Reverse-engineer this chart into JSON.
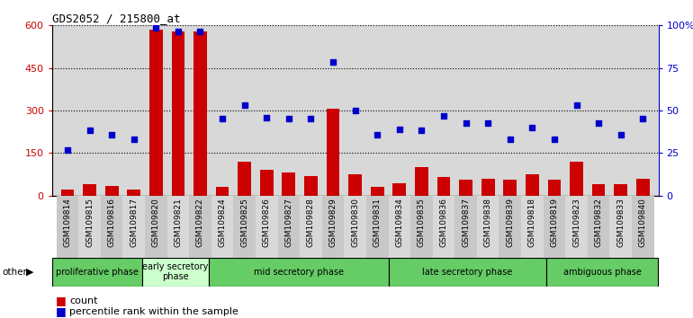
{
  "title": "GDS2052 / 215800_at",
  "samples": [
    "GSM109814",
    "GSM109815",
    "GSM109816",
    "GSM109817",
    "GSM109820",
    "GSM109821",
    "GSM109822",
    "GSM109824",
    "GSM109825",
    "GSM109826",
    "GSM109827",
    "GSM109828",
    "GSM109829",
    "GSM109830",
    "GSM109831",
    "GSM109834",
    "GSM109835",
    "GSM109836",
    "GSM109837",
    "GSM109838",
    "GSM109839",
    "GSM109818",
    "GSM109819",
    "GSM109823",
    "GSM109832",
    "GSM109833",
    "GSM109840"
  ],
  "counts": [
    22,
    40,
    35,
    22,
    585,
    580,
    580,
    30,
    120,
    90,
    80,
    70,
    305,
    75,
    30,
    45,
    100,
    65,
    55,
    60,
    55,
    75,
    55,
    120,
    40,
    40,
    60
  ],
  "percentile_left_coords": [
    160,
    230,
    215,
    200,
    590,
    580,
    580,
    270,
    320,
    275,
    270,
    270,
    470,
    300,
    215,
    235,
    230,
    280,
    255,
    255,
    200,
    240,
    200,
    320,
    255,
    215,
    270
  ],
  "ylim_left": [
    0,
    600
  ],
  "ylim_right": [
    0,
    100
  ],
  "yticks_left": [
    0,
    150,
    300,
    450,
    600
  ],
  "yticks_right_vals": [
    0,
    25,
    50,
    75,
    100
  ],
  "yticks_right_labels": [
    "0",
    "25",
    "50",
    "75",
    "100%"
  ],
  "bar_color": "#cc0000",
  "dot_color": "#0000cc",
  "phases": [
    {
      "label": "proliferative phase",
      "start": 0,
      "end": 4,
      "light": true
    },
    {
      "label": "early secretory\nphase",
      "start": 4,
      "end": 7,
      "light": false
    },
    {
      "label": "mid secretory phase",
      "start": 7,
      "end": 15,
      "light": true
    },
    {
      "label": "late secretory phase",
      "start": 15,
      "end": 22,
      "light": true
    },
    {
      "label": "ambiguous phase",
      "start": 22,
      "end": 27,
      "light": true
    }
  ],
  "phase_color_dark": "#66cc66",
  "phase_color_light": "#ccffcc",
  "other_label": "other",
  "legend_count_label": "count",
  "legend_percentile_label": "percentile rank within the sample",
  "plot_bg_color": "#d8d8d8",
  "tick_bg_color": "#d0d0d0",
  "left_axis_color": "#cc0000",
  "right_axis_color": "#0000cc"
}
